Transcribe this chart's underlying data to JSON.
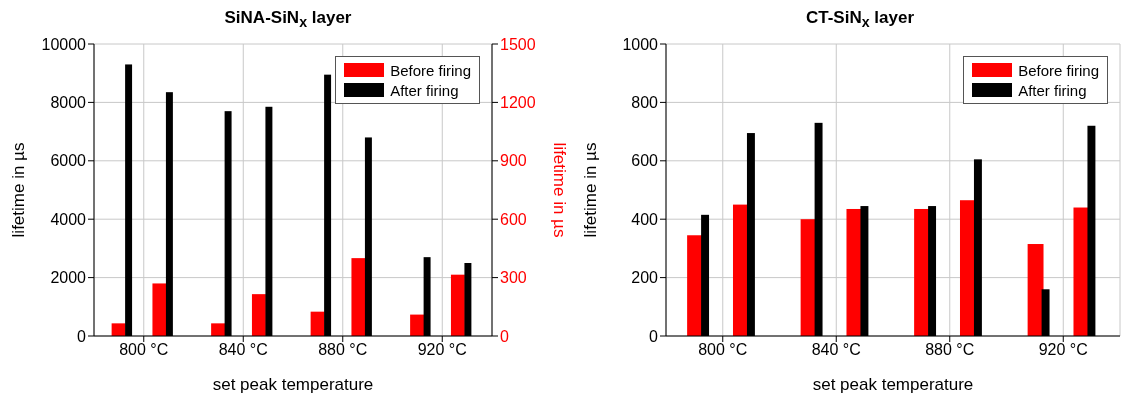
{
  "chart_data": [
    {
      "type": "bar",
      "title": "SiNA-SiN$_{x}$ layer",
      "xlabel": "set peak temperature",
      "ylabel": "lifetime in µs",
      "y2label": "lifetime in µs",
      "categories": [
        "800 °C",
        "840 °C",
        "880 °C",
        "920 °C"
      ],
      "series": [
        {
          "name": "Before firing",
          "color": "#ff0000",
          "axis": "y2",
          "values": [
            65,
            65,
            125,
            110
          ]
        },
        {
          "color": "#ff0000",
          "axis": "y2",
          "values": [
            270,
            215,
            400,
            315
          ]
        },
        {
          "name": "After firing",
          "color": "#000000",
          "values": [
            9300,
            7700,
            8950,
            2700
          ]
        },
        {
          "color": "#000000",
          "values": [
            8350,
            7850,
            6800,
            2500
          ]
        }
      ],
      "ylim": [
        0,
        10000
      ],
      "yticks": [
        0,
        2000,
        4000,
        6000,
        8000,
        10000
      ],
      "y2lim": [
        0,
        1500
      ],
      "y2ticks": [
        0,
        300,
        600,
        900,
        1200,
        1500
      ],
      "grid": true,
      "legend": "top right"
    },
    {
      "type": "bar",
      "title": "CT-SiN$_{x}$ layer",
      "xlabel": "set peak temperature",
      "ylabel": "lifetime in µs",
      "categories": [
        "800 °C",
        "840 °C",
        "880 °C",
        "920 °C"
      ],
      "series": [
        {
          "name": "Before firing",
          "color": "#ff0000",
          "values": [
            345,
            400,
            435,
            315
          ]
        },
        {
          "color": "#ff0000",
          "values": [
            450,
            435,
            465,
            440
          ]
        },
        {
          "name": "After firing",
          "color": "#000000",
          "values": [
            415,
            730,
            445,
            160
          ]
        },
        {
          "color": "#000000",
          "values": [
            695,
            445,
            605,
            720
          ]
        }
      ],
      "ylim": [
        0,
        1000
      ],
      "yticks": [
        0,
        200,
        400,
        600,
        800,
        1000
      ],
      "grid": true,
      "legend": "top right"
    }
  ]
}
